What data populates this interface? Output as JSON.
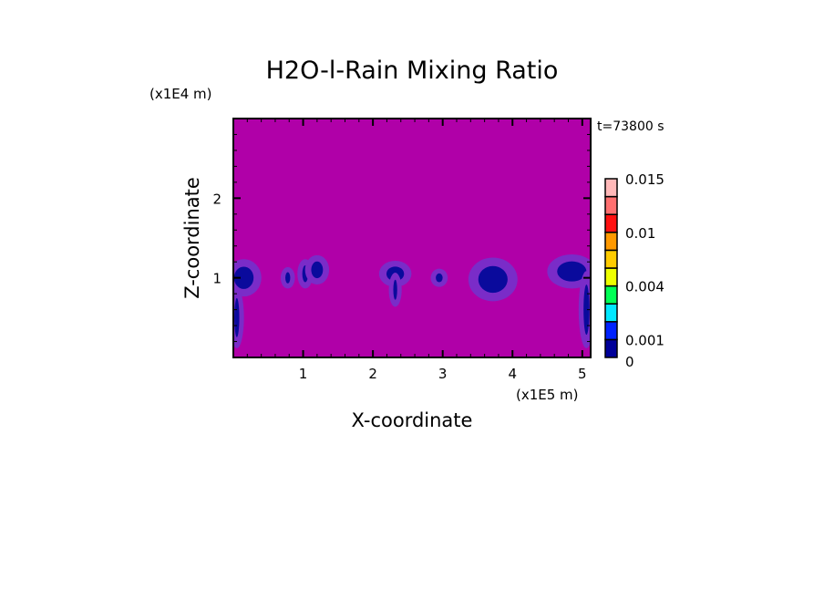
{
  "chart_data": {
    "type": "heatmap",
    "title": "H2O-l-Rain Mixing Ratio",
    "time_label": "t=73800 s",
    "xlabel": "X-coordinate",
    "ylabel": "Z-coordinate",
    "x_unit": "(x1E5 m)",
    "y_unit": "(x1E4 m)",
    "xlim": [
      0,
      5.12
    ],
    "ylim": [
      0,
      3.0
    ],
    "x_ticks": [
      "1",
      "2",
      "3",
      "4",
      "5"
    ],
    "x_tick_values": [
      1,
      2,
      3,
      4,
      5
    ],
    "y_ticks": [
      "1",
      "2"
    ],
    "y_tick_values": [
      1,
      2
    ],
    "background_color": "#b000a8",
    "colorbar": {
      "levels": [
        0,
        0.001,
        0.002,
        0.003,
        0.004,
        0.006,
        0.008,
        0.01,
        0.012,
        0.014,
        0.015
      ],
      "colors": [
        "#000099",
        "#0022ff",
        "#00e8ff",
        "#00ff55",
        "#eeff00",
        "#ffcc00",
        "#ff9900",
        "#ff1111",
        "#ff7070",
        "#ffb8b8"
      ],
      "labels": [
        {
          "text": "0.015",
          "value": 0.015
        },
        {
          "text": "0.01",
          "value": 0.01
        },
        {
          "text": "0.004",
          "value": 0.004
        },
        {
          "text": "0.001",
          "value": 0.001
        },
        {
          "text": "0",
          "value": 0
        }
      ]
    },
    "rain_regions": [
      {
        "x": 0.15,
        "z": 1.0,
        "rx": 0.2,
        "rz": 0.2
      },
      {
        "x": 0.05,
        "z": 0.5,
        "rx": 0.05,
        "rz": 0.35
      },
      {
        "x": 0.78,
        "z": 1.0,
        "rx": 0.05,
        "rz": 0.1
      },
      {
        "x": 1.03,
        "z": 1.05,
        "rx": 0.06,
        "rz": 0.15
      },
      {
        "x": 1.2,
        "z": 1.1,
        "rx": 0.12,
        "rz": 0.15
      },
      {
        "x": 2.32,
        "z": 1.05,
        "rx": 0.18,
        "rz": 0.13
      },
      {
        "x": 2.32,
        "z": 0.85,
        "rx": 0.04,
        "rz": 0.18
      },
      {
        "x": 2.95,
        "z": 1.0,
        "rx": 0.07,
        "rz": 0.08
      },
      {
        "x": 3.72,
        "z": 0.98,
        "rx": 0.3,
        "rz": 0.24
      },
      {
        "x": 4.85,
        "z": 1.08,
        "rx": 0.3,
        "rz": 0.18
      },
      {
        "x": 5.06,
        "z": 0.6,
        "rx": 0.06,
        "rz": 0.45
      }
    ],
    "region_outer_color": "#7a2cc8",
    "region_inner_color": "#0a0a9c",
    "grid": false
  }
}
